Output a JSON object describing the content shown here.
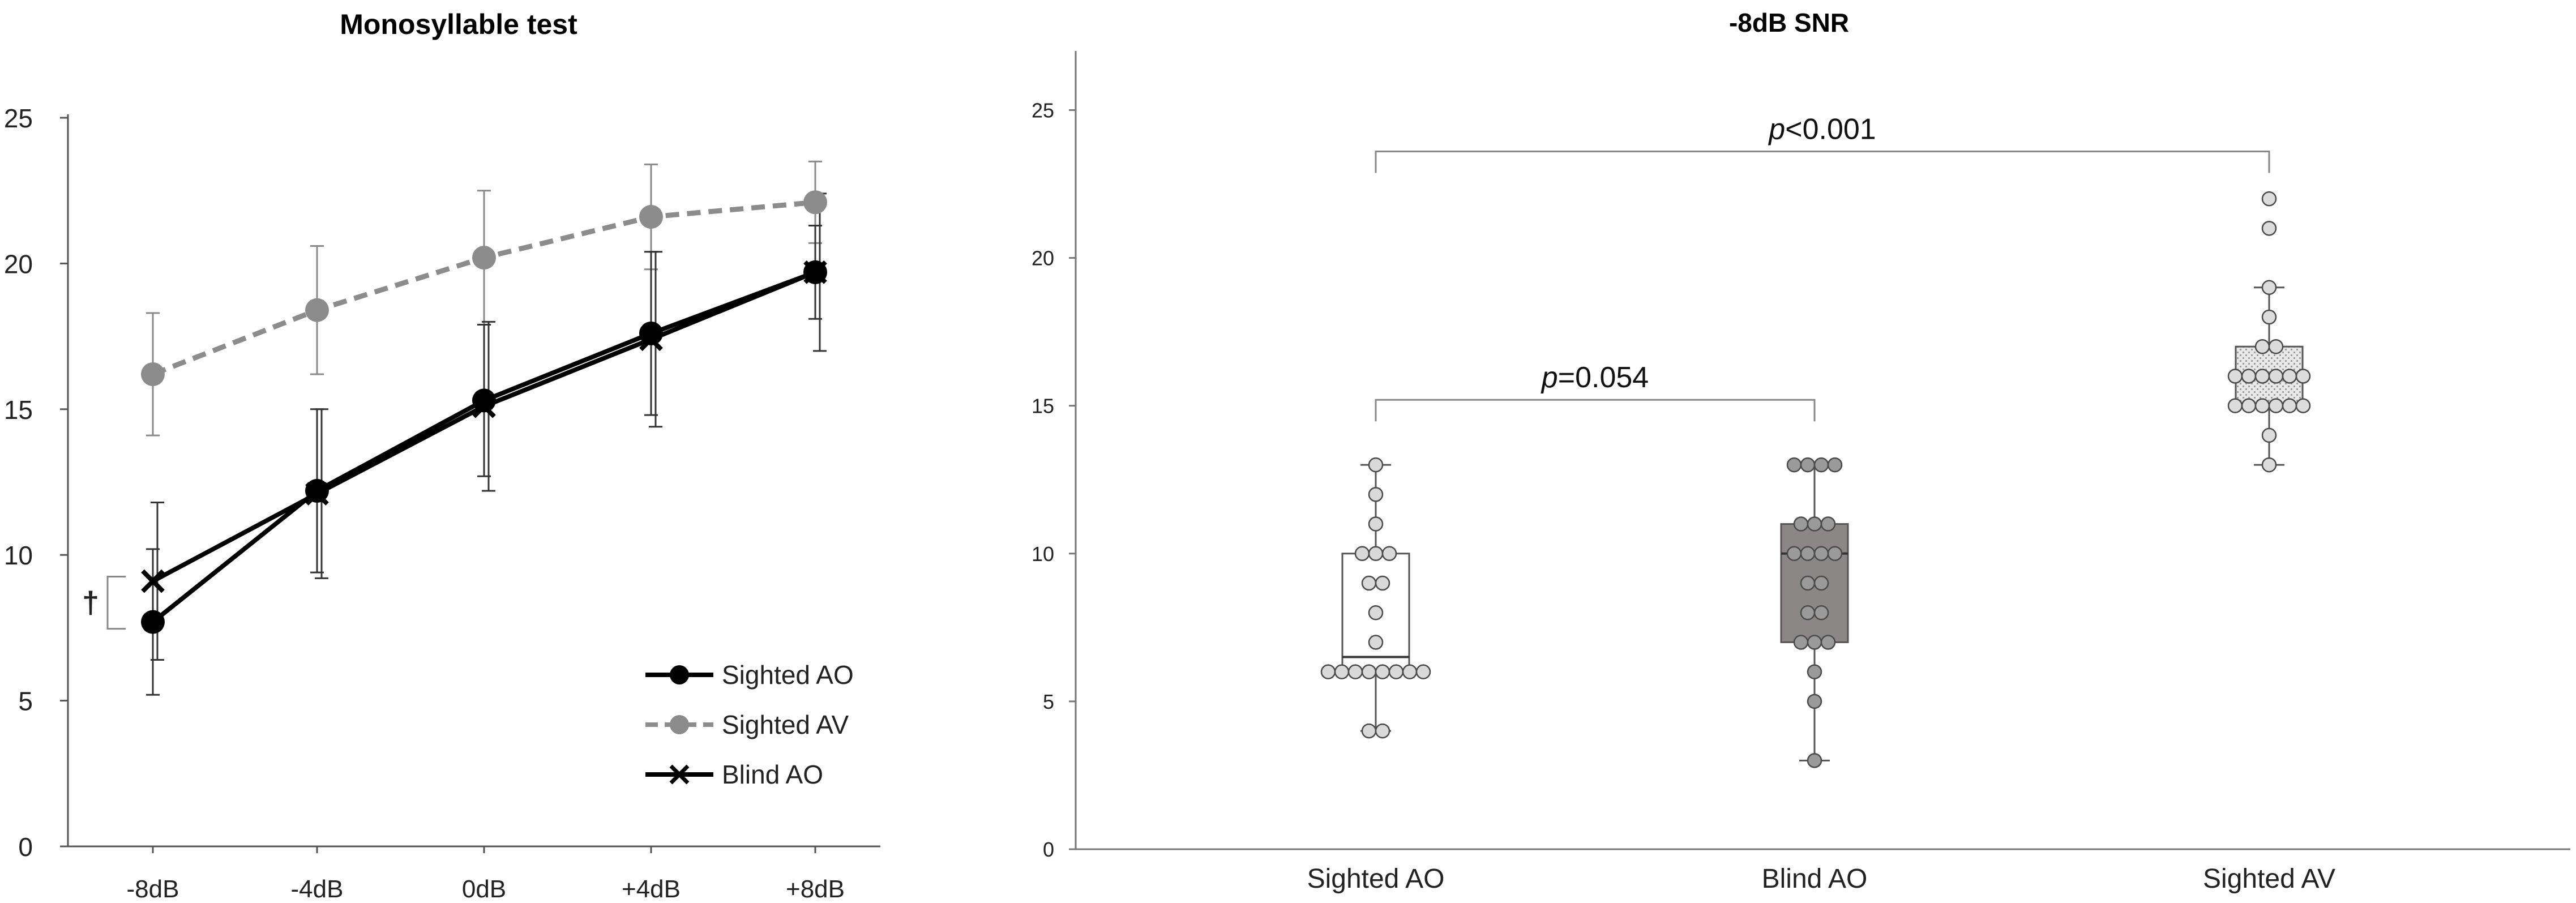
{
  "chart_data": [
    {
      "type": "line",
      "title": "Monosyllable test",
      "xlabel": "",
      "ylabel": "",
      "categories": [
        "-8dB",
        "-4dB",
        "0dB",
        "+4dB",
        "+8dB"
      ],
      "ylim": [
        0,
        25
      ],
      "yticks": [
        "0",
        "5",
        "10",
        "15",
        "20",
        "25"
      ],
      "grid": false,
      "legend_position": "bottom-right",
      "series": [
        {
          "name": "Sighted AO",
          "color": "#000000",
          "line_style": "solid",
          "marker": "circle",
          "values": [
            7.7,
            12.2,
            15.3,
            17.6,
            19.7
          ],
          "error": [
            2.5,
            2.8,
            2.6,
            2.8,
            1.6
          ]
        },
        {
          "name": "Sighted AV",
          "color": "#8c8c8c",
          "line_style": "dashed",
          "marker": "circle",
          "values": [
            16.2,
            18.4,
            20.2,
            21.6,
            22.1
          ],
          "error": [
            2.1,
            2.2,
            2.3,
            1.8,
            1.4
          ]
        },
        {
          "name": "Blind AO",
          "color": "#000000",
          "line_style": "solid",
          "marker": "x",
          "values": [
            9.1,
            12.1,
            15.1,
            17.4,
            19.7
          ],
          "error": [
            2.7,
            2.9,
            2.9,
            3.0,
            2.7
          ]
        }
      ],
      "annotations": [
        {
          "text": "†",
          "between_series": [
            "Sighted AO",
            "Blind AO"
          ],
          "category": "-8dB"
        }
      ]
    },
    {
      "type": "box",
      "title": "-8dB SNR",
      "xlabel": "",
      "ylabel": "",
      "categories": [
        "Sighted AO",
        "Blind AO",
        "Sighted AV"
      ],
      "ylim": [
        0,
        27
      ],
      "yticks": [
        "0",
        "5",
        "10",
        "15",
        "20",
        "25"
      ],
      "grid": false,
      "boxes": [
        {
          "name": "Sighted AO",
          "fill": "#ffffff",
          "pattern": "none",
          "point_fill": "#d9d9d9",
          "min": 4,
          "q1": 6,
          "median": 6.5,
          "q3": 10,
          "max": 13,
          "points": [
            4,
            4,
            6,
            6,
            6,
            6,
            6,
            6,
            6,
            6,
            7,
            8,
            9,
            9,
            10,
            10,
            10,
            11,
            12,
            13
          ]
        },
        {
          "name": "Blind AO",
          "fill": "#8c8787",
          "pattern": "none",
          "point_fill": "#9a9a9a",
          "min": 3,
          "q1": 7,
          "median": 10,
          "q3": 11,
          "max": 13,
          "points": [
            3,
            5,
            6,
            7,
            7,
            7,
            8,
            8,
            9,
            9,
            10,
            10,
            10,
            10,
            11,
            11,
            11,
            13,
            13,
            13,
            13
          ]
        },
        {
          "name": "Sighted AV",
          "fill": "#e4e4e4",
          "pattern": "dots",
          "point_fill": "#dcdcdc",
          "min": 13,
          "q1": 15,
          "median": 16,
          "q3": 17,
          "max": 19,
          "points": [
            13,
            14,
            15,
            15,
            15,
            15,
            15,
            15,
            16,
            16,
            16,
            16,
            16,
            16,
            17,
            17,
            18,
            19,
            21,
            22
          ]
        }
      ],
      "comparisons": [
        {
          "groups": [
            "Sighted AO",
            "Sighted AV"
          ],
          "label_italic": "p",
          "label_rest": "<0.001",
          "level": 23.6
        },
        {
          "groups": [
            "Sighted AO",
            "Blind AO"
          ],
          "label_italic": "p",
          "label_rest": "=0.054",
          "level": 15.2
        }
      ]
    }
  ]
}
